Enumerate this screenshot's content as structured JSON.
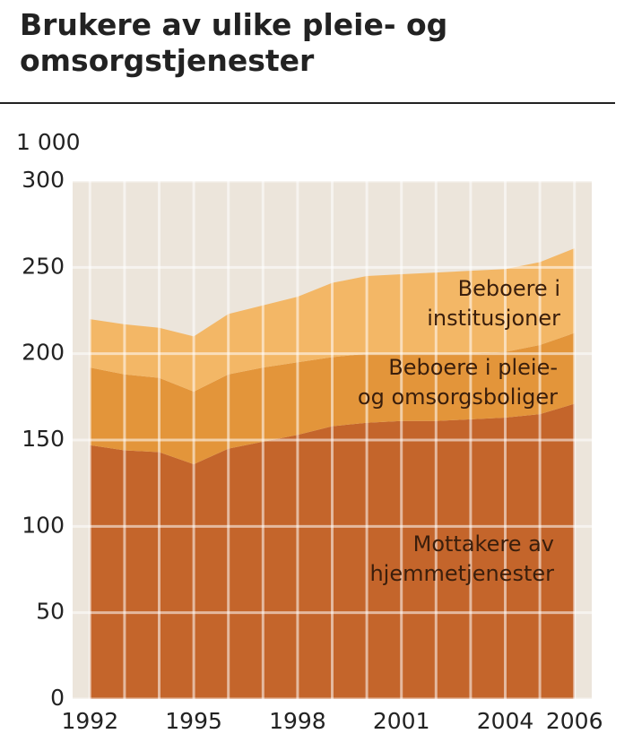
{
  "chart_data": {
    "type": "stacked_area",
    "title": "Brukere av ulike pleie- og omsorgstjenester",
    "y_label": "1 000",
    "x": [
      1992,
      1993,
      1994,
      1995,
      1996,
      1997,
      1998,
      1999,
      2000,
      2001,
      2002,
      2003,
      2004,
      2005,
      2006
    ],
    "xlim": [
      1991.5,
      2006.5
    ],
    "xticks": [
      1992,
      1995,
      1998,
      2001,
      2004,
      2006
    ],
    "ylim": [
      0,
      300
    ],
    "yticks": [
      0,
      50,
      100,
      150,
      200,
      250,
      300
    ],
    "grid": true,
    "series": [
      {
        "name": [
          "Mottakere av",
          "hjemmetjenester"
        ],
        "color": "#c4652b",
        "values": [
          147,
          144,
          143,
          136,
          145,
          149,
          153,
          158,
          160,
          161,
          161,
          162,
          163,
          165,
          171
        ]
      },
      {
        "name": [
          "Beboere i pleie-",
          "og omsorgsboliger"
        ],
        "color": "#e3953a",
        "values": [
          45,
          44,
          43,
          42,
          43,
          43,
          42,
          40,
          40,
          39,
          39,
          38,
          38,
          40,
          41
        ]
      },
      {
        "name": [
          "Beboere i",
          "institusjoner"
        ],
        "color": "#f3b766",
        "values": [
          28,
          29,
          29,
          32,
          35,
          36,
          38,
          43,
          45,
          46,
          47,
          48,
          48,
          48,
          49
        ]
      }
    ]
  }
}
